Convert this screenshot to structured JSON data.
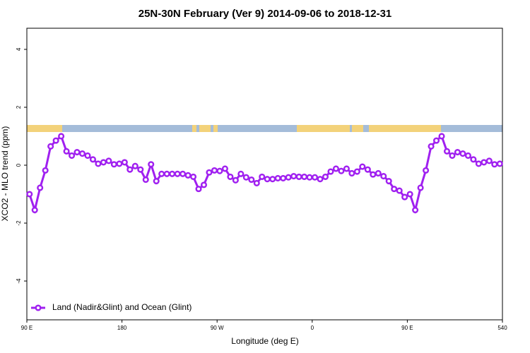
{
  "chart_data": {
    "type": "line",
    "title": "25N-30N February (Ver 9)   2014-09-06 to 2018-12-31",
    "xlabel": "Longitude (deg E)",
    "ylabel": "XCO2 - MLO trend (ppm)",
    "x": [
      92.5,
      97.5,
      102.5,
      107.5,
      112.5,
      117.5,
      122.5,
      127.5,
      132.5,
      137.5,
      142.5,
      147.5,
      152.5,
      157.5,
      162.5,
      167.5,
      172.5,
      177.5,
      182.5,
      187.5,
      192.5,
      197.5,
      202.5,
      207.5,
      212.5,
      217.5,
      222.5,
      227.5,
      232.5,
      237.5,
      242.5,
      247.5,
      252.5,
      257.5,
      262.5,
      267.5,
      272.5,
      277.5,
      282.5,
      287.5,
      292.5,
      297.5,
      302.5,
      307.5,
      312.5,
      317.5,
      322.5,
      327.5,
      332.5,
      337.5,
      342.5,
      347.5,
      352.5,
      357.5,
      362.5,
      367.5,
      372.5,
      377.5,
      382.5,
      387.5,
      392.5,
      397.5,
      402.5,
      407.5,
      412.5,
      417.5,
      422.5,
      427.5,
      432.5,
      437.5,
      442.5,
      447.5,
      452.5,
      457.5,
      462.5,
      467.5,
      472.5,
      477.5,
      482.5,
      487.5,
      492.5,
      497.5,
      502.5,
      507.5,
      512.5,
      517.5,
      522.5,
      527.5,
      532.5,
      537.5
    ],
    "series": [
      {
        "name": "Land (Nadir&Glint) and Ocean (Glint)",
        "color": "#a020f0",
        "values": [
          -1.0,
          -1.55,
          -0.78,
          -0.18,
          0.65,
          0.85,
          1.0,
          0.48,
          0.33,
          0.45,
          0.4,
          0.33,
          0.2,
          0.05,
          0.1,
          0.15,
          0.03,
          0.05,
          0.1,
          -0.15,
          -0.03,
          -0.15,
          -0.5,
          0.03,
          -0.55,
          -0.3,
          -0.3,
          -0.3,
          -0.3,
          -0.3,
          -0.35,
          -0.4,
          -0.82,
          -0.68,
          -0.25,
          -0.18,
          -0.2,
          -0.12,
          -0.4,
          -0.52,
          -0.3,
          -0.42,
          -0.5,
          -0.62,
          -0.4,
          -0.48,
          -0.48,
          -0.45,
          -0.45,
          -0.42,
          -0.38,
          -0.4,
          -0.4,
          -0.42,
          -0.42,
          -0.48,
          -0.4,
          -0.22,
          -0.12,
          -0.2,
          -0.12,
          -0.28,
          -0.22,
          -0.05,
          -0.15,
          -0.32,
          -0.28,
          -0.38,
          -0.55,
          -0.82,
          -0.88,
          -1.1,
          -1.0,
          -1.55,
          -0.78,
          -0.18,
          0.65,
          0.85,
          1.0,
          0.48,
          0.33,
          0.45,
          0.4,
          0.33,
          0.2,
          0.05,
          0.1,
          0.15,
          0.03,
          0.05
        ]
      }
    ],
    "xlim": [
      90,
      540
    ],
    "xticks": [
      {
        "value": 90,
        "label": "90 E"
      },
      180,
      {
        "value": 270,
        "label": "90 W"
      },
      {
        "value": 360,
        "label": "0"
      },
      {
        "value": 450,
        "label": "90 E"
      },
      540
    ],
    "ylim": [
      -5.34,
      4.73
    ],
    "yticks": [
      -4,
      -2,
      0,
      2,
      4
    ],
    "legend": "bottomleft"
  }
}
